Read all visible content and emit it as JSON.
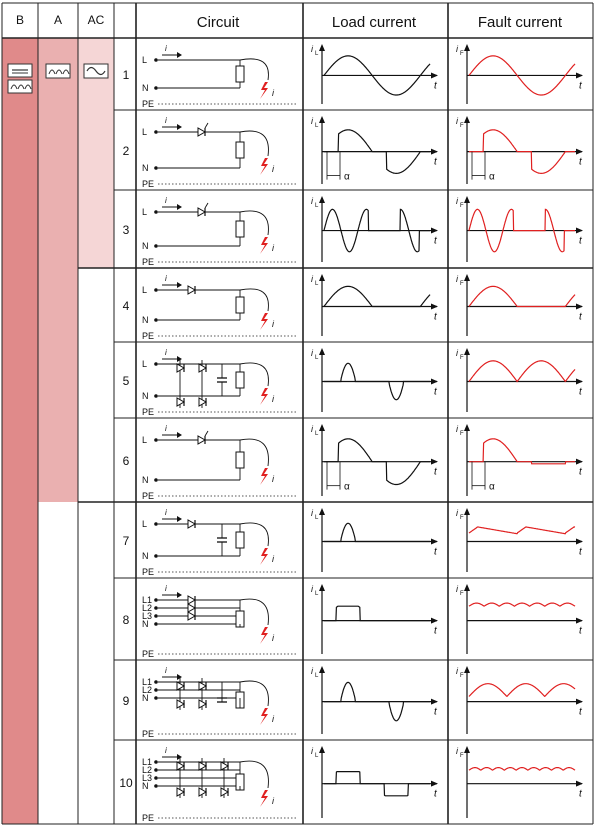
{
  "headers": {
    "b": "B",
    "a": "A",
    "ac": "AC",
    "circuit": "Circuit",
    "load": "Load current",
    "fault": "Fault current"
  },
  "labels": {
    "i_load": "i",
    "i_load_sub": "L",
    "i_fault": "i",
    "i_fault_sub": "F",
    "t": "t",
    "alpha": "α",
    "L": "L",
    "N": "N",
    "PE": "PE",
    "L1": "L1",
    "L2": "L2",
    "L3": "L3"
  },
  "colors": {
    "b_band": "#e08a8a",
    "a_band": "#eab0b0",
    "ac_band": "#f5d6d6",
    "fault_wave": "#e02020",
    "wave": "#111111",
    "grid": "#222222",
    "pe_dotted": "#555555"
  },
  "icons": {
    "b_symbol": "dc-and-pulsating-icon",
    "a_symbol": "pulsating-dc-icon",
    "ac_symbol": "sine-icon",
    "fault_symbol": "lightning-icon"
  },
  "rows": [
    {
      "num": "1",
      "circuit": "single-phase-resistive",
      "lines": [
        "L",
        "N",
        "PE"
      ],
      "load": "sine",
      "fault": "sine",
      "alpha": false
    },
    {
      "num": "2",
      "circuit": "single-phase-phase-control",
      "lines": [
        "L",
        "N",
        "PE"
      ],
      "load": "phase-cut",
      "fault": "phase-cut",
      "alpha": true
    },
    {
      "num": "3",
      "circuit": "single-phase-burst-control",
      "lines": [
        "L",
        "N",
        "PE"
      ],
      "load": "burst",
      "fault": "burst",
      "alpha": false
    },
    {
      "num": "4",
      "circuit": "single-phase-half-wave",
      "lines": [
        "L",
        "N",
        "PE"
      ],
      "load": "half-wave",
      "fault": "half-wave",
      "alpha": false
    },
    {
      "num": "5",
      "circuit": "bridge-rectifier-smoothed",
      "lines": [
        "L",
        "N",
        "PE"
      ],
      "load": "pulses-alternating",
      "fault": "full-wave",
      "alpha": false
    },
    {
      "num": "6",
      "circuit": "bridge-rectifier-phase-control",
      "lines": [
        "L",
        "N",
        "PE"
      ],
      "load": "phase-cut",
      "fault": "phase-cut-dc",
      "alpha": true
    },
    {
      "num": "7",
      "circuit": "half-wave-smoothed",
      "lines": [
        "L",
        "N",
        "PE"
      ],
      "load": "narrow-pulses",
      "fault": "smoothed-dc",
      "alpha": false
    },
    {
      "num": "8",
      "circuit": "three-phase-star-rectifier",
      "lines": [
        "L1",
        "L2",
        "L3",
        "N",
        "PE"
      ],
      "load": "flat-pulses",
      "fault": "three-pulse-ripple",
      "alpha": false
    },
    {
      "num": "9",
      "circuit": "two-phase-bridge-smoothed",
      "lines": [
        "L1",
        "L2",
        "N",
        "PE"
      ],
      "load": "pulses-alternating",
      "fault": "two-pulse-ripple",
      "alpha": false
    },
    {
      "num": "10",
      "circuit": "three-phase-bridge-rectifier",
      "lines": [
        "L1",
        "L2",
        "L3",
        "N",
        "PE"
      ],
      "load": "flat-alternating",
      "fault": "six-pulse-ripple",
      "alpha": false
    }
  ]
}
